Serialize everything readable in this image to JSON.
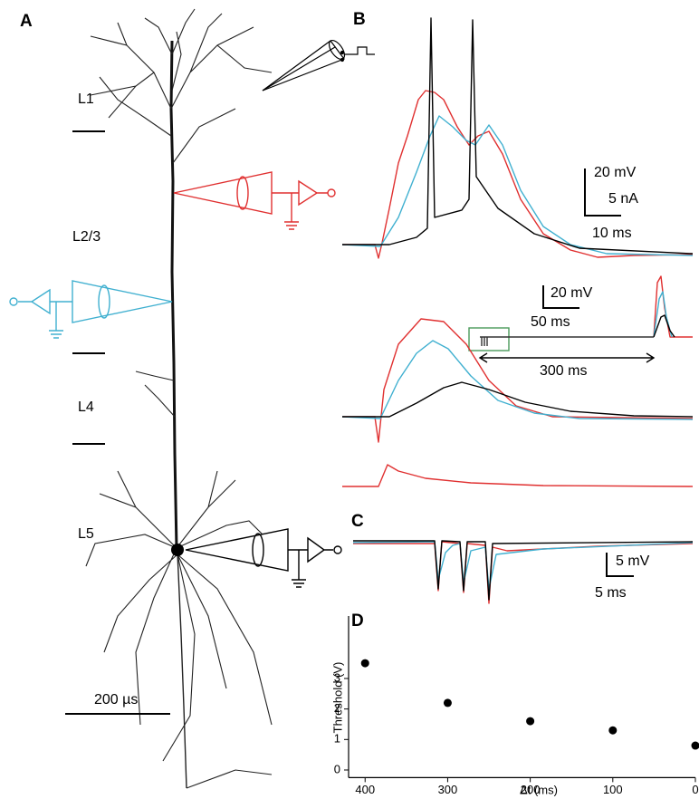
{
  "panels": {
    "a": "A",
    "b": "B",
    "c": "C",
    "d": "D"
  },
  "layers": [
    "L1",
    "L2/3",
    "L4",
    "L5"
  ],
  "scale_bars": {
    "a": "200 µs",
    "b_top": [
      "20 mV",
      "5 nA",
      "10 ms"
    ],
    "b_mid": [
      "20 mV",
      "50 ms"
    ],
    "b_interval": "300 ms",
    "c": [
      "5 mV",
      "5 ms"
    ]
  },
  "chart_data": {
    "type": "scatter",
    "xlabel": "Δt (ms)",
    "ylabel": "Threshold (V)",
    "x": [
      400,
      300,
      200,
      100,
      0
    ],
    "values": [
      3.5,
      2.2,
      1.6,
      1.3,
      0.8
    ],
    "color": "#000000",
    "xlim": [
      420,
      0
    ],
    "xticks": [
      400,
      300,
      200,
      100,
      0
    ],
    "ylim": [
      -0.25,
      3.75
    ],
    "yticks": [
      0,
      1,
      2,
      3
    ]
  }
}
